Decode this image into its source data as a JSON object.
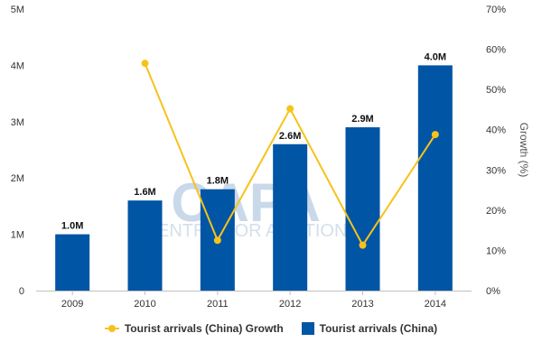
{
  "watermark": {
    "logo": "CAPA",
    "subtitle": "CENTRE FOR AVIATION"
  },
  "chart_data": {
    "type": "bar",
    "categories": [
      "2009",
      "2010",
      "2011",
      "2012",
      "2013",
      "2014"
    ],
    "series": [
      {
        "name": "Tourist arrivals (China)",
        "type": "bar",
        "axis": "left",
        "values": [
          1.0,
          1.6,
          1.8,
          2.6,
          2.9,
          4.0
        ],
        "data_labels": [
          "1.0M",
          "1.6M",
          "1.8M",
          "2.6M",
          "2.9M",
          "4.0M"
        ],
        "color": "#0055a5"
      },
      {
        "name": "Tourist arrivals (China) Growth",
        "type": "line",
        "axis": "right",
        "values": [
          null,
          56.5,
          12.5,
          45.2,
          11.3,
          38.8
        ],
        "color": "#f7c21b"
      }
    ],
    "y_left": {
      "ticks": [
        "0",
        "1M",
        "2M",
        "3M",
        "4M",
        "5M"
      ],
      "min": 0,
      "max": 5
    },
    "y_right": {
      "label": "Growth (%)",
      "ticks": [
        "0%",
        "10%",
        "20%",
        "30%",
        "40%",
        "50%",
        "60%",
        "70%"
      ],
      "min": 0,
      "max": 70
    },
    "grid": false,
    "legend_position": "bottom"
  },
  "legend": {
    "items": [
      {
        "label": "Tourist arrivals (China) Growth",
        "symbol": "line"
      },
      {
        "label": "Tourist arrivals (China)",
        "symbol": "bar"
      }
    ]
  }
}
